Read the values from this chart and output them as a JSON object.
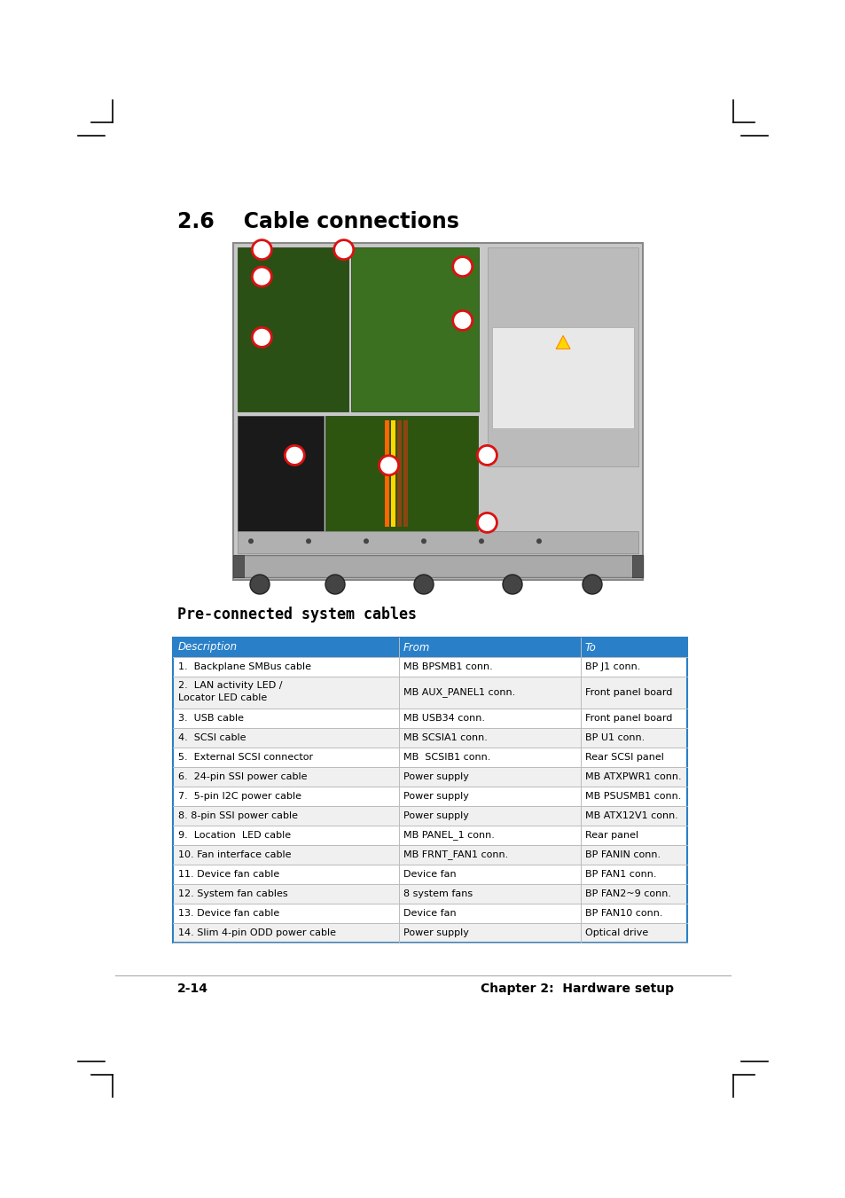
{
  "title_section": "2.6    Cable connections",
  "subtitle": "Pre-connected system cables",
  "header": [
    "Description",
    "From",
    "To"
  ],
  "header_bg": "#2980C8",
  "header_text_color": "#FFFFFF",
  "rows": [
    [
      "1.  Backplane SMBus cable",
      "MB BPSMB1 conn.",
      "BP J1 conn."
    ],
    [
      "2.  LAN activity LED /\n    Locator LED cable",
      "MB AUX_PANEL1 conn.",
      "Front panel board"
    ],
    [
      "3.  USB cable",
      "MB USB34 conn.",
      "Front panel board"
    ],
    [
      "4.  SCSI cable",
      "MB SCSIA1 conn.",
      "BP U1 conn."
    ],
    [
      "5.  External SCSI connector",
      "MB  SCSIB1 conn.",
      "Rear SCSI panel"
    ],
    [
      "6.  24-pin SSI power cable",
      "Power supply",
      "MB ATXPWR1 conn."
    ],
    [
      "7.  5-pin I2C power cable",
      "Power supply",
      "MB PSUSMB1 conn."
    ],
    [
      "8. 8-pin SSI power cable",
      "Power supply",
      "MB ATX12V1 conn."
    ],
    [
      "9.  Location  LED cable",
      "MB PANEL_1 conn.",
      "Rear panel"
    ],
    [
      "10. Fan interface cable",
      "MB FRNT_FAN1 conn.",
      "BP FANIN conn."
    ],
    [
      "11. Device fan cable",
      "Device fan",
      "BP FAN1 conn."
    ],
    [
      "12. System fan cables",
      "8 system fans",
      "BP FAN2~9 conn."
    ],
    [
      "13. Device fan cable",
      "Device fan",
      "BP FAN10 conn."
    ],
    [
      "14. Slim 4-pin ODD power cable",
      "Power supply",
      "Optical drive"
    ]
  ],
  "row_bg_odd": "#FFFFFF",
  "row_bg_even": "#F0F0F0",
  "table_border_color": "#2980C8",
  "table_line_color": "#BBBBBB",
  "page_number": "2-14",
  "page_footer": "Chapter 2:  Hardware setup",
  "bg_color": "#FFFFFF"
}
